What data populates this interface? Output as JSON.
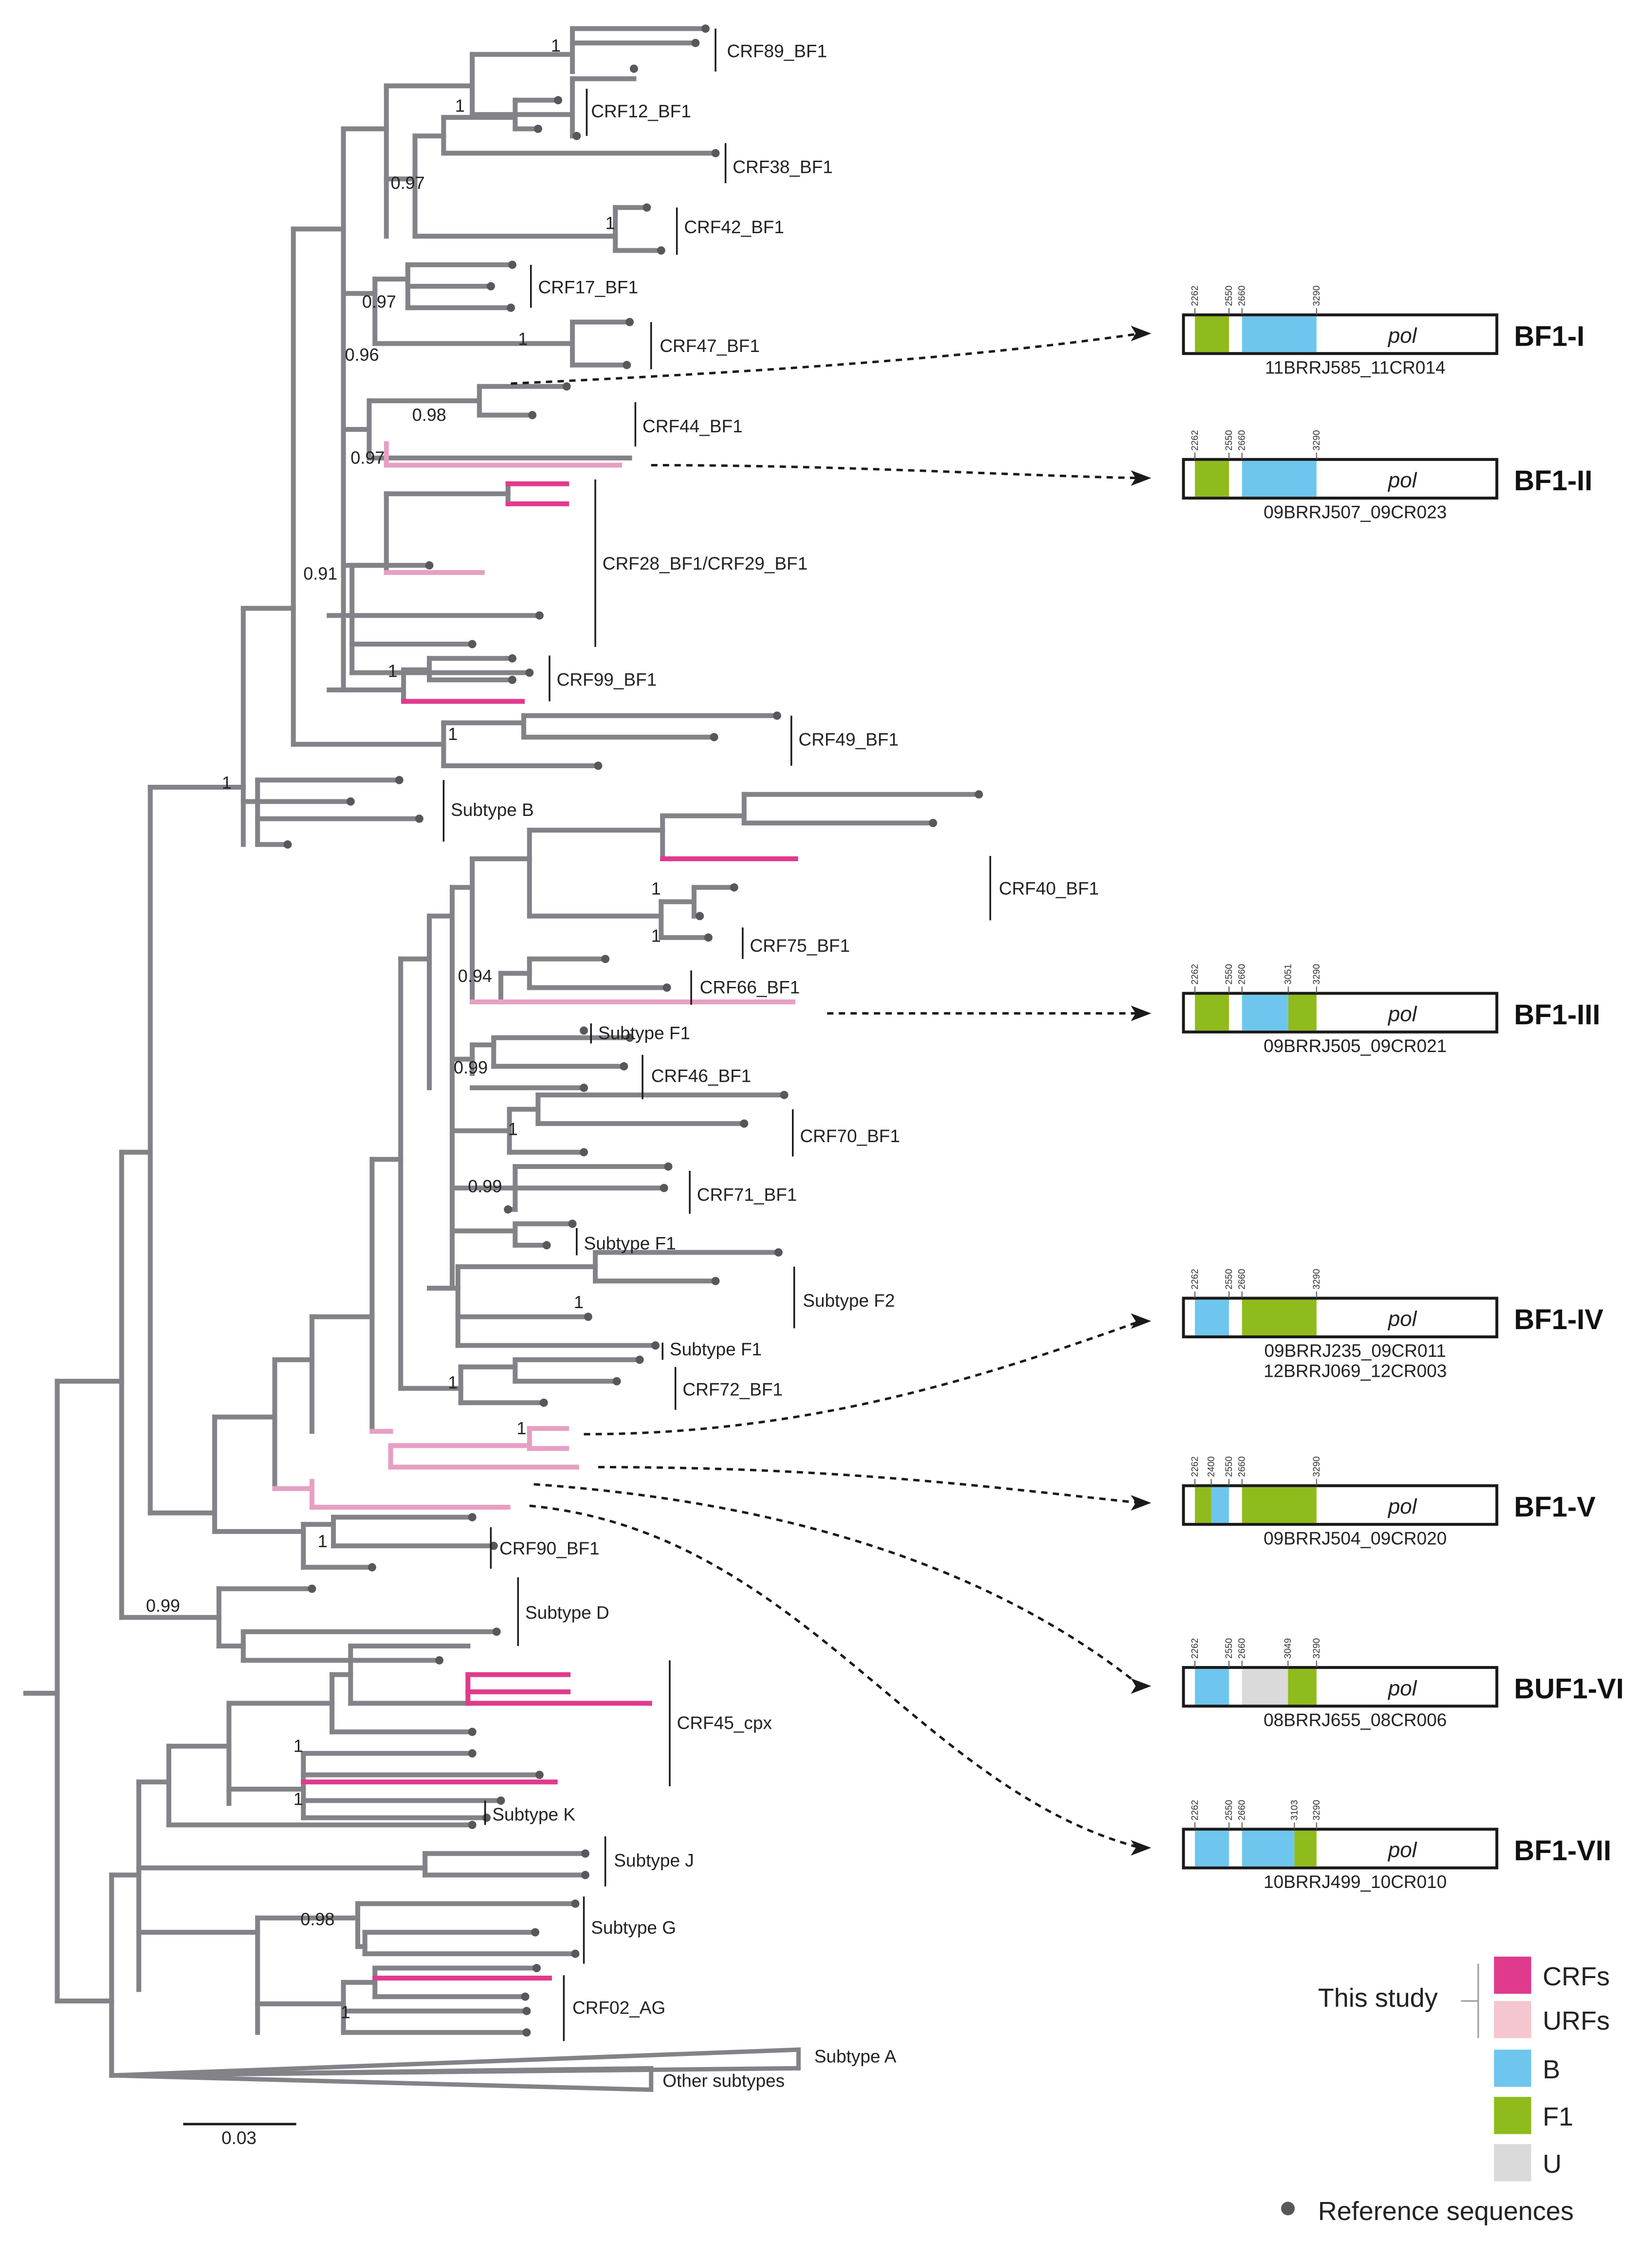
{
  "colors": {
    "branch": "#838288",
    "crf_branch": "#e03a8c",
    "urf_branch": "#e79fc3",
    "segment_B": "#6ec6ee",
    "segment_F1": "#90bb1c",
    "segment_U": "#dadada",
    "legend_urf_swatch": "#f5c6cf",
    "reference_dot": "#58585c"
  },
  "tree": {
    "clade_labels": {
      "crf89": "CRF89_BF1",
      "crf12": "CRF12_BF1",
      "crf38": "CRF38_BF1",
      "crf42": "CRF42_BF1",
      "crf17": "CRF17_BF1",
      "crf47": "CRF47_BF1",
      "crf44": "CRF44_BF1",
      "crf28_29": "CRF28_BF1/CRF29_BF1",
      "crf99": "CRF99_BF1",
      "crf49": "CRF49_BF1",
      "subtype_b": "Subtype B",
      "crf40": "CRF40_BF1",
      "crf75": "CRF75_BF1",
      "crf66": "CRF66_BF1",
      "subtype_f1_a": "Subtype F1",
      "crf46": "CRF46_BF1",
      "crf70": "CRF70_BF1",
      "crf71": "CRF71_BF1",
      "subtype_f1_b": "Subtype F1",
      "subtype_f2": "Subtype F2",
      "subtype_f1_c": "Subtype F1",
      "crf72": "CRF72_BF1",
      "crf90": "CRF90_BF1",
      "subtype_d": "Subtype D",
      "crf45": "CRF45_cpx",
      "subtype_k": "Subtype K",
      "subtype_j": "Subtype J",
      "subtype_g": "Subtype G",
      "crf02": "CRF02_AG",
      "subtype_a": "Subtype A",
      "other": "Other subtypes"
    },
    "support_values": {
      "crf89": "1",
      "crf12": "1",
      "crf38": "0.97",
      "crf42": "1",
      "crf17": "0.97",
      "crf47": "1",
      "urf1": "0.96",
      "crf44": "0.98",
      "urf2": "0.97",
      "crf28": "0.91",
      "crf99": "1",
      "crf49": "1",
      "bclade": "1",
      "crf40": "1",
      "crf75": "1",
      "crf66": "0.94",
      "crf46": "0.99",
      "crf70": "1",
      "crf71": "0.99",
      "f2": "1",
      "crf72": "1",
      "urf4": "1",
      "crf90": "1",
      "subd": "0.99",
      "crf45": "1",
      "subk": "1",
      "subg": "0.98",
      "crf02": "1"
    },
    "scale_bar": {
      "value": 0.03,
      "label": "0.03"
    }
  },
  "recombinant_forms": [
    {
      "name": "BF1-I",
      "isolates": [
        "11BRRJ585_11CR014"
      ],
      "gene": "pol",
      "breakpoints": [
        2262,
        2550,
        2660,
        3290
      ],
      "segments": [
        {
          "subtype": "F1",
          "start": 2262,
          "end": 2550
        },
        {
          "subtype": "B",
          "start": 2660,
          "end": 3290
        }
      ]
    },
    {
      "name": "BF1-II",
      "isolates": [
        "09BRRJ507_09CR023"
      ],
      "gene": "pol",
      "breakpoints": [
        2262,
        2550,
        2660,
        3290
      ],
      "segments": [
        {
          "subtype": "F1",
          "start": 2262,
          "end": 2550
        },
        {
          "subtype": "B",
          "start": 2660,
          "end": 3290
        }
      ]
    },
    {
      "name": "BF1-III",
      "isolates": [
        "09BRRJ505_09CR021"
      ],
      "gene": "pol",
      "breakpoints": [
        2262,
        2550,
        2660,
        3051,
        3290
      ],
      "segments": [
        {
          "subtype": "F1",
          "start": 2262,
          "end": 2550
        },
        {
          "subtype": "B",
          "start": 2660,
          "end": 3051
        },
        {
          "subtype": "F1",
          "start": 3051,
          "end": 3290
        }
      ]
    },
    {
      "name": "BF1-IV",
      "isolates": [
        "09BRRJ235_09CR011",
        "12BRRJ069_12CR003"
      ],
      "gene": "pol",
      "breakpoints": [
        2262,
        2550,
        2660,
        3290
      ],
      "segments": [
        {
          "subtype": "B",
          "start": 2262,
          "end": 2550
        },
        {
          "subtype": "F1",
          "start": 2660,
          "end": 3290
        }
      ]
    },
    {
      "name": "BF1-V",
      "isolates": [
        "09BRRJ504_09CR020"
      ],
      "gene": "pol",
      "breakpoints": [
        2262,
        2400,
        2550,
        2660,
        3290
      ],
      "segments": [
        {
          "subtype": "F1",
          "start": 2262,
          "end": 2400
        },
        {
          "subtype": "B",
          "start": 2400,
          "end": 2550
        },
        {
          "subtype": "F1",
          "start": 2660,
          "end": 3290
        }
      ]
    },
    {
      "name": "BUF1-VI",
      "isolates": [
        "08BRRJ655_08CR006"
      ],
      "gene": "pol",
      "breakpoints": [
        2262,
        2550,
        2660,
        3049,
        3290
      ],
      "segments": [
        {
          "subtype": "B",
          "start": 2262,
          "end": 2550
        },
        {
          "subtype": "U",
          "start": 2660,
          "end": 3049
        },
        {
          "subtype": "F1",
          "start": 3049,
          "end": 3290
        }
      ]
    },
    {
      "name": "BF1-VII",
      "isolates": [
        "10BRRJ499_10CR010"
      ],
      "gene": "pol",
      "breakpoints": [
        2262,
        2550,
        2660,
        3103,
        3290
      ],
      "segments": [
        {
          "subtype": "B",
          "start": 2262,
          "end": 2550
        },
        {
          "subtype": "B",
          "start": 2660,
          "end": 3103
        },
        {
          "subtype": "F1",
          "start": 3103,
          "end": 3290
        }
      ]
    }
  ],
  "legend": {
    "this_study": "This study",
    "crfs": "CRFs",
    "urfs": "URFs",
    "b": "B",
    "f1": "F1",
    "u": "U",
    "reference": "Reference sequences"
  }
}
